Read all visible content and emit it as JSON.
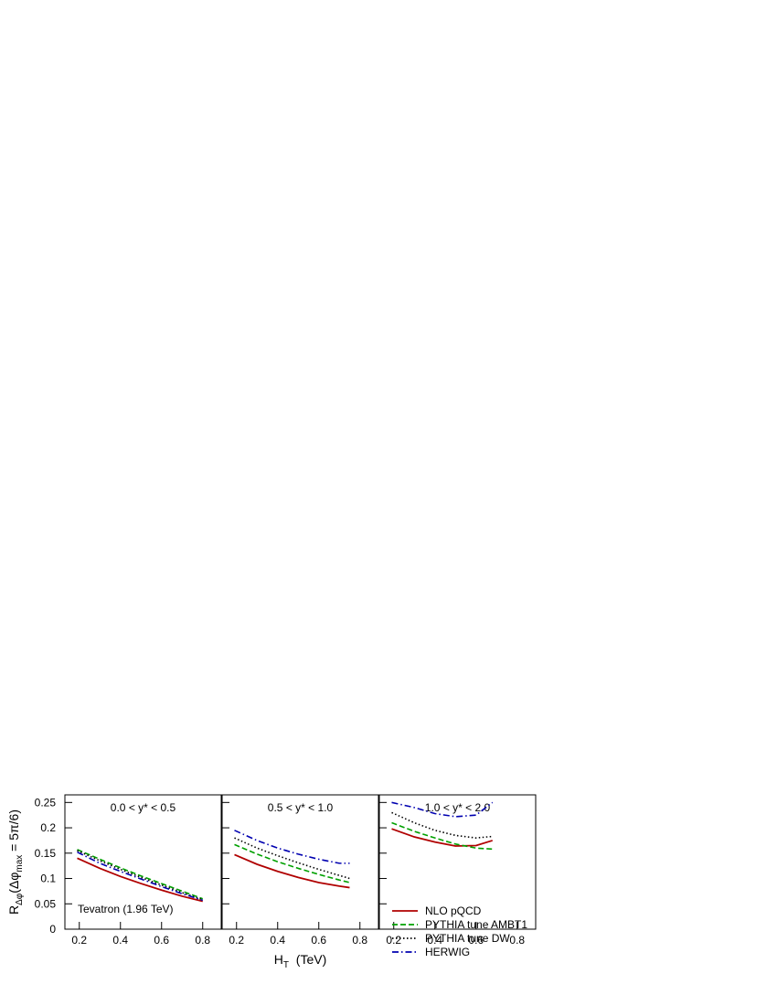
{
  "chart_data": {
    "type": "line",
    "ylabel_parts": [
      "R",
      "Δφ",
      "(Δφ",
      "max",
      " = 5π/6)"
    ],
    "xlabel_parts": [
      "H",
      "T",
      "  (TeV)"
    ],
    "xlim": [
      0.13,
      0.89
    ],
    "xticks": [
      0.2,
      0.4,
      0.6,
      0.8
    ],
    "ylim": [
      0,
      0.265
    ],
    "yticks": [
      0,
      0.05,
      0.1,
      0.15,
      0.2,
      0.25
    ],
    "series": [
      {
        "name": "NLO pQCD",
        "color": "#b00000",
        "dash": "solid"
      },
      {
        "name": "PYTHIA tune AMBT1",
        "color": "#00a000",
        "dash": "dashed"
      },
      {
        "name": "PYTHIA tune DW",
        "color": "#000000",
        "dash": "dotted"
      },
      {
        "name": "HERWIG",
        "color": "#0000b0",
        "dash": "dashdot"
      }
    ],
    "legend_panel": 2,
    "panels": [
      {
        "title": "0.0 < y* < 0.5",
        "annotation": "Tevatron (1.96 TeV)",
        "x": [
          0.19,
          0.3,
          0.4,
          0.5,
          0.6,
          0.7,
          0.8
        ],
        "series": [
          {
            "values": [
              0.14,
              0.12,
              0.104,
              0.09,
              0.077,
              0.065,
              0.055
            ]
          },
          {
            "values": [
              0.157,
              0.138,
              0.121,
              0.105,
              0.09,
              0.075,
              0.06
            ]
          },
          {
            "values": [
              0.155,
              0.135,
              0.118,
              0.102,
              0.087,
              0.072,
              0.058
            ]
          },
          {
            "values": [
              0.152,
              0.13,
              0.114,
              0.099,
              0.084,
              0.07,
              0.057
            ]
          }
        ]
      },
      {
        "title": "0.5 < y* < 1.0",
        "x": [
          0.19,
          0.3,
          0.4,
          0.5,
          0.6,
          0.7,
          0.75
        ],
        "series": [
          {
            "values": [
              0.147,
              0.128,
              0.114,
              0.102,
              0.092,
              0.085,
              0.082
            ]
          },
          {
            "values": [
              0.167,
              0.148,
              0.133,
              0.12,
              0.108,
              0.097,
              0.092
            ]
          },
          {
            "values": [
              0.18,
              0.16,
              0.145,
              0.131,
              0.118,
              0.106,
              0.1
            ]
          },
          {
            "values": [
              0.195,
              0.175,
              0.16,
              0.148,
              0.138,
              0.13,
              0.13
            ]
          }
        ]
      },
      {
        "title": "1.0 < y* < 2.0",
        "x": [
          0.19,
          0.3,
          0.4,
          0.5,
          0.6,
          0.68
        ],
        "series": [
          {
            "values": [
              0.198,
              0.182,
              0.172,
              0.164,
              0.165,
              0.175
            ]
          },
          {
            "values": [
              0.21,
              0.193,
              0.18,
              0.168,
              0.16,
              0.158
            ]
          },
          {
            "values": [
              0.23,
              0.21,
              0.195,
              0.185,
              0.18,
              0.183
            ]
          },
          {
            "values": [
              0.25,
              0.24,
              0.228,
              0.222,
              0.225,
              0.25
            ]
          }
        ]
      }
    ]
  }
}
